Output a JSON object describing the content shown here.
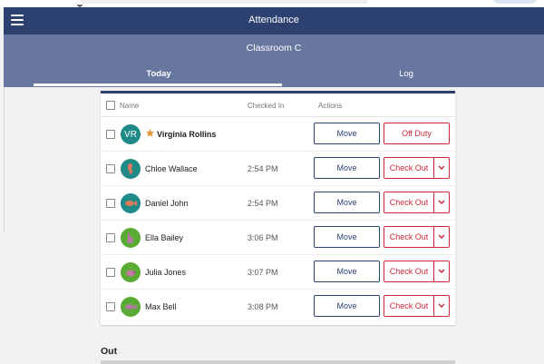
{
  "colors": {
    "appbar": "#2c4170",
    "subheader": "#6777a0",
    "accent_blue": "#2c4170",
    "accent_red": "#c8283a"
  },
  "app": {
    "title": "Attendance",
    "menu_icon": "hamburger-icon"
  },
  "classroom": {
    "name": "Classroom C"
  },
  "tabs": [
    {
      "label": "Today",
      "active": true
    },
    {
      "label": "Log",
      "active": false
    }
  ],
  "table": {
    "headers": {
      "name": "Name",
      "checked_in": "Checked In",
      "actions": "Actions"
    },
    "rows": [
      {
        "name": "Virginia Rollins",
        "initials": "VR",
        "checked_in": "",
        "avatar_color": "#1f8a86",
        "starred": true,
        "move_label": "Move",
        "action_label": "Off Duty"
      },
      {
        "name": "Chloe Wallace",
        "checked_in": "2:54 PM",
        "avatar_color": "#1f8a86",
        "avatar_icon": "seahorse-icon",
        "move_label": "Move",
        "action_label": "Check Out"
      },
      {
        "name": "Daniel John",
        "checked_in": "2:54 PM",
        "avatar_color": "#1f8a86",
        "avatar_icon": "fish-icon",
        "move_label": "Move",
        "action_label": "Check Out"
      },
      {
        "name": "Ella Bailey",
        "checked_in": "3:06 PM",
        "avatar_color": "#5aab34",
        "avatar_icon": "rabbit-icon",
        "move_label": "Move",
        "action_label": "Check Out"
      },
      {
        "name": "Julia Jones",
        "checked_in": "3:07 PM",
        "avatar_color": "#5aab34",
        "avatar_icon": "pig-icon",
        "move_label": "Move",
        "action_label": "Check Out"
      },
      {
        "name": "Max Bell",
        "checked_in": "3:08 PM",
        "avatar_color": "#5aab34",
        "avatar_icon": "fish-icon",
        "move_label": "Move",
        "action_label": "Check Out"
      }
    ]
  },
  "out_section": {
    "title": "Out"
  }
}
